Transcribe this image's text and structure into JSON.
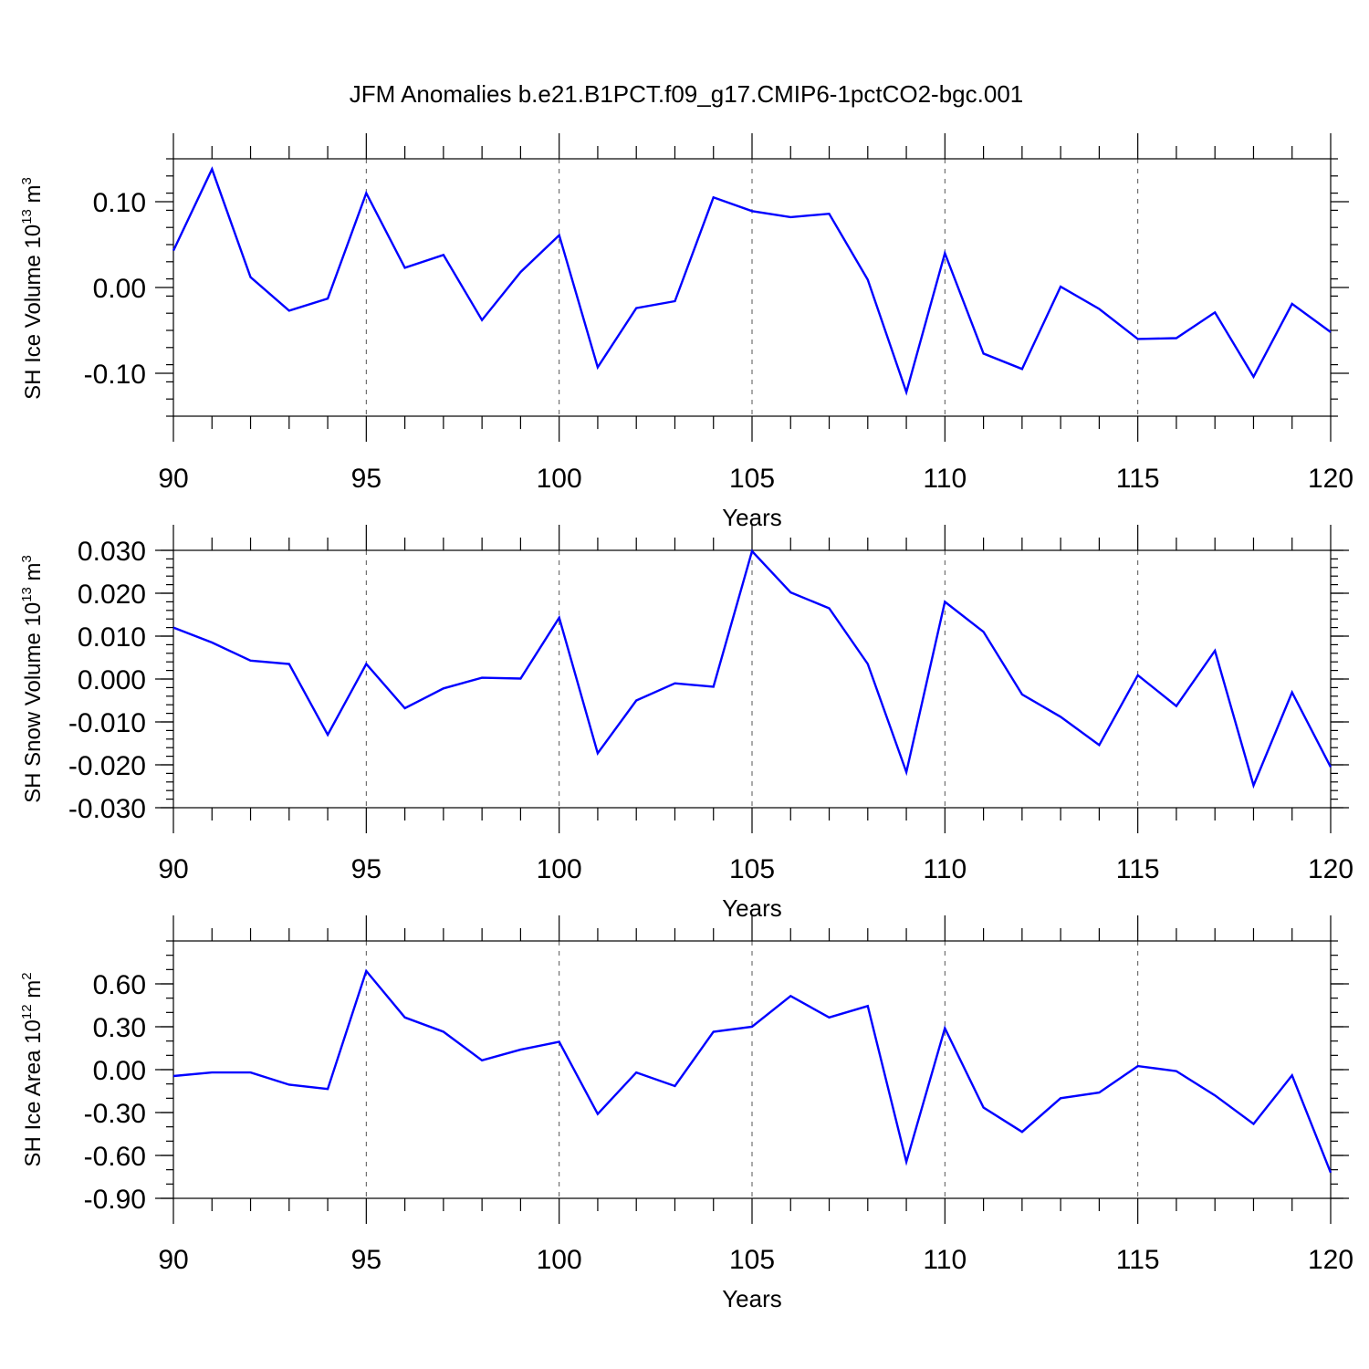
{
  "title": "JFM Anomalies b.e21.B1PCT.f09_g17.CMIP6-1pctCO2-bgc.001",
  "line_color": "#0000ff",
  "chart_data": [
    {
      "type": "line",
      "ylabel_main": "SH Ice Volume 10",
      "ylabel_exp": "13",
      "ylabel_unit": " m",
      "ylabel_unit_exp": "3",
      "xlabel": "Years",
      "xlim": [
        90,
        120
      ],
      "ylim": [
        -0.15,
        0.15
      ],
      "xticks": [
        90,
        95,
        100,
        105,
        110,
        115,
        120
      ],
      "xtick_labels": [
        "90",
        "95",
        "100",
        "105",
        "110",
        "115",
        "120"
      ],
      "yticks": [
        -0.1,
        0.0,
        0.1
      ],
      "ytick_labels": [
        "-0.10",
        "0.00",
        "0.10"
      ],
      "y_minor_step": 0.02,
      "x": [
        90,
        91,
        92,
        93,
        94,
        95,
        96,
        97,
        98,
        99,
        100,
        101,
        102,
        103,
        104,
        105,
        106,
        107,
        108,
        109,
        110,
        111,
        112,
        113,
        114,
        115,
        116,
        117,
        118,
        119,
        120
      ],
      "y": [
        0.043,
        0.138,
        0.012,
        -0.027,
        -0.013,
        0.11,
        0.023,
        0.038,
        -0.038,
        0.018,
        0.061,
        -0.093,
        -0.024,
        -0.016,
        0.105,
        0.089,
        0.082,
        0.086,
        0.009,
        -0.122,
        0.04,
        -0.077,
        -0.095,
        0.001,
        -0.025,
        -0.06,
        -0.059,
        -0.029,
        -0.104,
        -0.019,
        -0.052
      ]
    },
    {
      "type": "line",
      "ylabel_main": "SH Snow Volume 10",
      "ylabel_exp": "13",
      "ylabel_unit": " m",
      "ylabel_unit_exp": "3",
      "xlabel": "Years",
      "xlim": [
        90,
        120
      ],
      "ylim": [
        -0.03,
        0.03
      ],
      "xticks": [
        90,
        95,
        100,
        105,
        110,
        115,
        120
      ],
      "xtick_labels": [
        "90",
        "95",
        "100",
        "105",
        "110",
        "115",
        "120"
      ],
      "yticks": [
        -0.03,
        -0.02,
        -0.01,
        0.0,
        0.01,
        0.02,
        0.03
      ],
      "ytick_labels": [
        "-0.030",
        "-0.020",
        "-0.010",
        "0.000",
        "0.010",
        "0.020",
        "0.030"
      ],
      "y_minor_step": 0.002,
      "x": [
        90,
        91,
        92,
        93,
        94,
        95,
        96,
        97,
        98,
        99,
        100,
        101,
        102,
        103,
        104,
        105,
        106,
        107,
        108,
        109,
        110,
        111,
        112,
        113,
        114,
        115,
        116,
        117,
        118,
        119,
        120
      ],
      "y": [
        0.012,
        0.0085,
        0.0043,
        0.0035,
        -0.013,
        0.0035,
        -0.0068,
        -0.0022,
        0.0003,
        0.0001,
        0.0143,
        -0.0173,
        -0.005,
        -0.001,
        -0.0018,
        0.0298,
        0.0202,
        0.0165,
        0.0035,
        -0.0217,
        0.018,
        0.011,
        -0.0036,
        -0.0088,
        -0.0154,
        0.0009,
        -0.0063,
        0.0066,
        -0.0248,
        -0.0031,
        -0.0205
      ]
    },
    {
      "type": "line",
      "ylabel_main": "SH Ice Area 10",
      "ylabel_exp": "12",
      "ylabel_unit": " m",
      "ylabel_unit_exp": "2",
      "xlabel": "Years",
      "xlim": [
        90,
        120
      ],
      "ylim": [
        -0.9,
        0.9
      ],
      "xticks": [
        90,
        95,
        100,
        105,
        110,
        115,
        120
      ],
      "xtick_labels": [
        "90",
        "95",
        "100",
        "105",
        "110",
        "115",
        "120"
      ],
      "yticks": [
        -0.9,
        -0.6,
        -0.3,
        0.0,
        0.3,
        0.6
      ],
      "ytick_labels": [
        "-0.90",
        "-0.60",
        "-0.30",
        "0.00",
        "0.30",
        "0.60"
      ],
      "y_minor_step": 0.1,
      "x": [
        90,
        91,
        92,
        93,
        94,
        95,
        96,
        97,
        98,
        99,
        100,
        101,
        102,
        103,
        104,
        105,
        106,
        107,
        108,
        109,
        110,
        111,
        112,
        113,
        114,
        115,
        116,
        117,
        118,
        119,
        120
      ],
      "y": [
        -0.045,
        -0.02,
        -0.02,
        -0.105,
        -0.135,
        0.69,
        0.365,
        0.265,
        0.065,
        0.14,
        0.195,
        -0.31,
        -0.02,
        -0.115,
        0.265,
        0.3,
        0.515,
        0.365,
        0.445,
        -0.645,
        0.29,
        -0.265,
        -0.435,
        -0.2,
        -0.16,
        0.025,
        -0.01,
        -0.18,
        -0.38,
        -0.04,
        -0.72
      ]
    }
  ]
}
